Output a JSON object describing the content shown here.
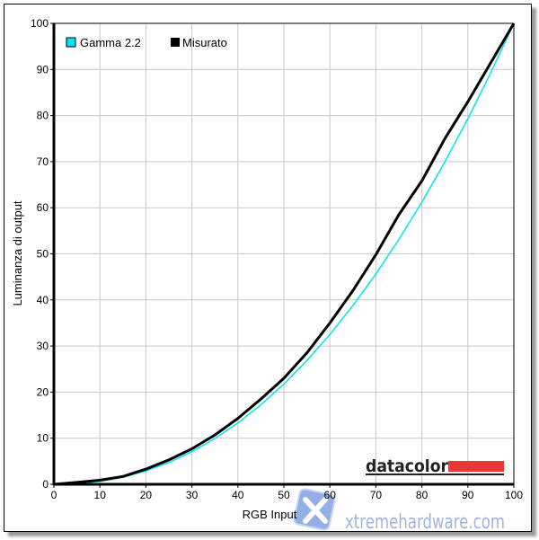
{
  "chart_data": {
    "type": "line",
    "title": "",
    "xlabel": "RGB Input",
    "ylabel": "Luminanza di output",
    "xlim": [
      0,
      100
    ],
    "ylim": [
      0,
      100
    ],
    "xticks": [
      0,
      10,
      20,
      30,
      40,
      50,
      60,
      70,
      80,
      90,
      100
    ],
    "yticks": [
      0,
      10,
      20,
      30,
      40,
      50,
      60,
      70,
      80,
      90,
      100
    ],
    "grid": true,
    "legend_position": "top-left",
    "x": [
      0,
      5,
      10,
      15,
      20,
      25,
      30,
      35,
      40,
      45,
      50,
      55,
      60,
      65,
      70,
      75,
      80,
      85,
      90,
      95,
      100
    ],
    "series": [
      {
        "name": "Gamma 2.2",
        "color": "#00e5ee",
        "values": [
          0,
          0.14,
          0.63,
          1.54,
          2.9,
          4.74,
          7.07,
          9.93,
          13.32,
          17.26,
          21.76,
          26.84,
          32.5,
          38.76,
          45.63,
          53.11,
          61.21,
          69.94,
          79.31,
          89.33,
          100
        ]
      },
      {
        "name": "Misurato",
        "color": "#000000",
        "values": [
          0,
          0.4,
          0.9,
          1.7,
          3.3,
          5.3,
          7.7,
          10.7,
          14.3,
          18.5,
          23,
          28.5,
          35,
          42,
          49.8,
          58.5,
          65.8,
          75,
          83,
          91.5,
          100
        ]
      }
    ]
  },
  "logos": {
    "datacolor": "datacolor",
    "watermark": "xtremehardware.com"
  }
}
